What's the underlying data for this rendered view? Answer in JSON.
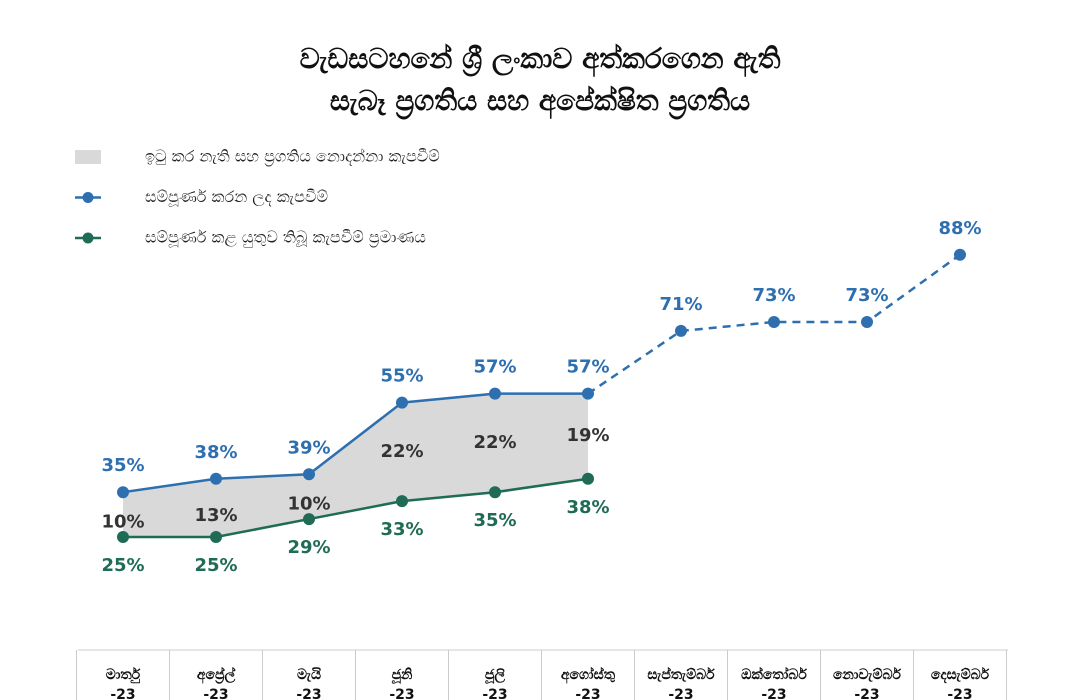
{
  "chart_data": {
    "type": "line",
    "title": [
      "වැඩසටහනේ ශ්‍රී ලංකාව අත්කරගෙන ඇති",
      "සැබෑ ප්‍රගතිය සහ අපේක්ෂිත ප්‍රගතිය"
    ],
    "categories": [
      "මාර්තු -23",
      "අප්‍රේල් -23",
      "මැයි -23",
      "ජූනි -23",
      "ජූලි -23",
      "අගෝස්තු -23",
      "සැප්තැම්බර් -23",
      "ඔක්තෝබර් -23",
      "නොවැම්බර් -23",
      "දෙසැම්බර් -23"
    ],
    "ylim": [
      0,
      100
    ],
    "series": [
      {
        "name": "ඉටු කර නැති සහ ප්‍රගතිය නොදන්නා කැපවීම්",
        "type": "area",
        "color": "#d9d9d9",
        "values": [
          10,
          13,
          10,
          22,
          22,
          19,
          null,
          null,
          null,
          null
        ],
        "value_labels": [
          "10%",
          "13%",
          "10%",
          "22%",
          "22%",
          "19%",
          null,
          null,
          null,
          null
        ]
      },
      {
        "name": "සම්පූර්ණ කරන ලද කැපවීම්",
        "type": "line",
        "color": "#2e6fb0",
        "dashed_after": 5,
        "values": [
          35,
          38,
          39,
          55,
          57,
          57,
          71,
          73,
          73,
          88
        ],
        "value_labels": [
          "35%",
          "38%",
          "39%",
          "55%",
          "57%",
          "57%",
          "71%",
          "73%",
          "73%",
          "88%"
        ]
      },
      {
        "name": "සම්පූර්ණ කළ යුතුව තිබූ කැපවීම් ප්‍රමාණය",
        "type": "line",
        "color": "#1f6b55",
        "values": [
          25,
          25,
          29,
          33,
          35,
          38,
          null,
          null,
          null,
          null
        ],
        "value_labels": [
          "25%",
          "25%",
          "29%",
          "33%",
          "35%",
          "38%",
          null,
          null,
          null,
          null
        ]
      }
    ]
  }
}
